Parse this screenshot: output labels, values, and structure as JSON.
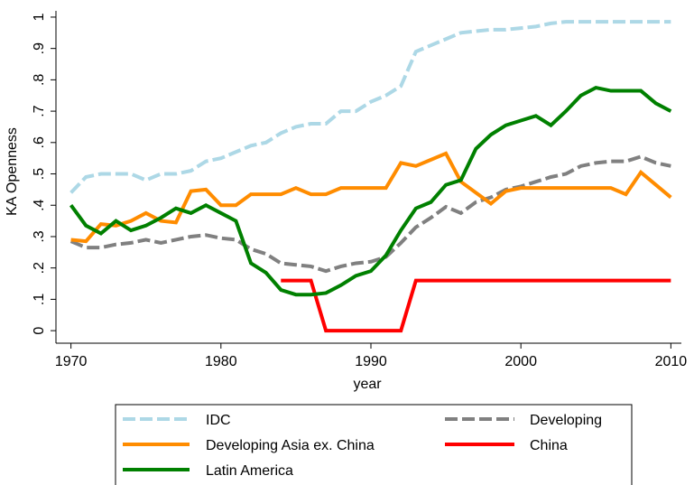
{
  "chart_data": {
    "type": "line",
    "x_label": "year",
    "y_label": "KA Openness",
    "x": [
      1970,
      1971,
      1972,
      1973,
      1974,
      1975,
      1976,
      1977,
      1978,
      1979,
      1980,
      1981,
      1982,
      1983,
      1984,
      1985,
      1986,
      1987,
      1988,
      1989,
      1990,
      1991,
      1992,
      1993,
      1994,
      1995,
      1996,
      1997,
      1998,
      1999,
      2000,
      2001,
      2002,
      2003,
      2004,
      2005,
      2006,
      2007,
      2008,
      2009,
      2010
    ],
    "xlim": [
      1969,
      2010.7
    ],
    "xticks": [
      1970,
      1980,
      1990,
      2000,
      2010
    ],
    "ylim": [
      -0.04,
      1.02
    ],
    "yticks": [
      0,
      {
        "value": 0.1,
        "label": ".1"
      },
      {
        "value": 0.2,
        "label": ".2"
      },
      {
        "value": 0.3,
        "label": ".3"
      },
      {
        "value": 0.4,
        "label": ".4"
      },
      {
        "value": 0.5,
        "label": ".5"
      },
      {
        "value": 0.6,
        "label": ".6"
      },
      {
        "value": 0.7,
        "label": ".7"
      },
      {
        "value": 0.8,
        "label": ".8"
      },
      {
        "value": 0.9,
        "label": ".9"
      },
      1
    ],
    "grid": false,
    "series": [
      {
        "name": "IDC",
        "color": "#add8e6",
        "dashed": true,
        "values": [
          0.44,
          0.49,
          0.5,
          0.5,
          0.5,
          0.48,
          0.5,
          0.5,
          0.51,
          0.54,
          0.55,
          0.57,
          0.59,
          0.6,
          0.63,
          0.65,
          0.66,
          0.66,
          0.7,
          0.7,
          0.73,
          0.75,
          0.78,
          0.89,
          0.91,
          0.93,
          0.95,
          0.955,
          0.96,
          0.96,
          0.965,
          0.97,
          0.98,
          0.985,
          0.985,
          0.985,
          0.985,
          0.985,
          0.985,
          0.985,
          0.985
        ]
      },
      {
        "name": "Developing",
        "color": "#808080",
        "dashed": true,
        "values": [
          0.285,
          0.265,
          0.265,
          0.275,
          0.28,
          0.29,
          0.28,
          0.29,
          0.3,
          0.305,
          0.295,
          0.29,
          0.26,
          0.245,
          0.215,
          0.21,
          0.205,
          0.19,
          0.205,
          0.215,
          0.22,
          0.235,
          0.28,
          0.33,
          0.36,
          0.395,
          0.375,
          0.41,
          0.425,
          0.45,
          0.46,
          0.475,
          0.49,
          0.5,
          0.525,
          0.535,
          0.54,
          0.54,
          0.555,
          0.535,
          0.525
        ]
      },
      {
        "name": "Developing Asia ex. China",
        "color": "#ff8c00",
        "dashed": false,
        "values": [
          0.29,
          0.285,
          0.34,
          0.335,
          0.35,
          0.375,
          0.35,
          0.345,
          0.445,
          0.45,
          0.4,
          0.4,
          0.435,
          0.435,
          0.435,
          0.455,
          0.435,
          0.435,
          0.455,
          0.455,
          0.455,
          0.455,
          0.535,
          0.525,
          0.545,
          0.565,
          0.475,
          0.44,
          0.405,
          0.445,
          0.455,
          0.455,
          0.455,
          0.455,
          0.455,
          0.455,
          0.455,
          0.435,
          0.505,
          0.465,
          0.425
        ]
      },
      {
        "name": "China",
        "color": "#ff0000",
        "dashed": false,
        "values": [
          null,
          null,
          null,
          null,
          null,
          null,
          null,
          null,
          null,
          null,
          null,
          null,
          null,
          null,
          0.16,
          0.16,
          0.16,
          0,
          0,
          0,
          0,
          0,
          0,
          0.16,
          0.16,
          0.16,
          0.16,
          0.16,
          0.16,
          0.16,
          0.16,
          0.16,
          0.16,
          0.16,
          0.16,
          0.16,
          0.16,
          0.16,
          0.16,
          0.16,
          0.16
        ]
      },
      {
        "name": "Latin America",
        "color": "#008000",
        "dashed": false,
        "values": [
          0.4,
          0.335,
          0.31,
          0.35,
          0.32,
          0.335,
          0.36,
          0.39,
          0.375,
          0.4,
          0.375,
          0.35,
          0.215,
          0.185,
          0.13,
          0.115,
          0.115,
          0.12,
          0.145,
          0.175,
          0.19,
          0.24,
          0.32,
          0.39,
          0.41,
          0.465,
          0.48,
          0.58,
          0.625,
          0.655,
          0.67,
          0.685,
          0.655,
          0.7,
          0.75,
          0.775,
          0.765,
          0.765,
          0.765,
          0.725,
          0.7
        ]
      }
    ]
  }
}
